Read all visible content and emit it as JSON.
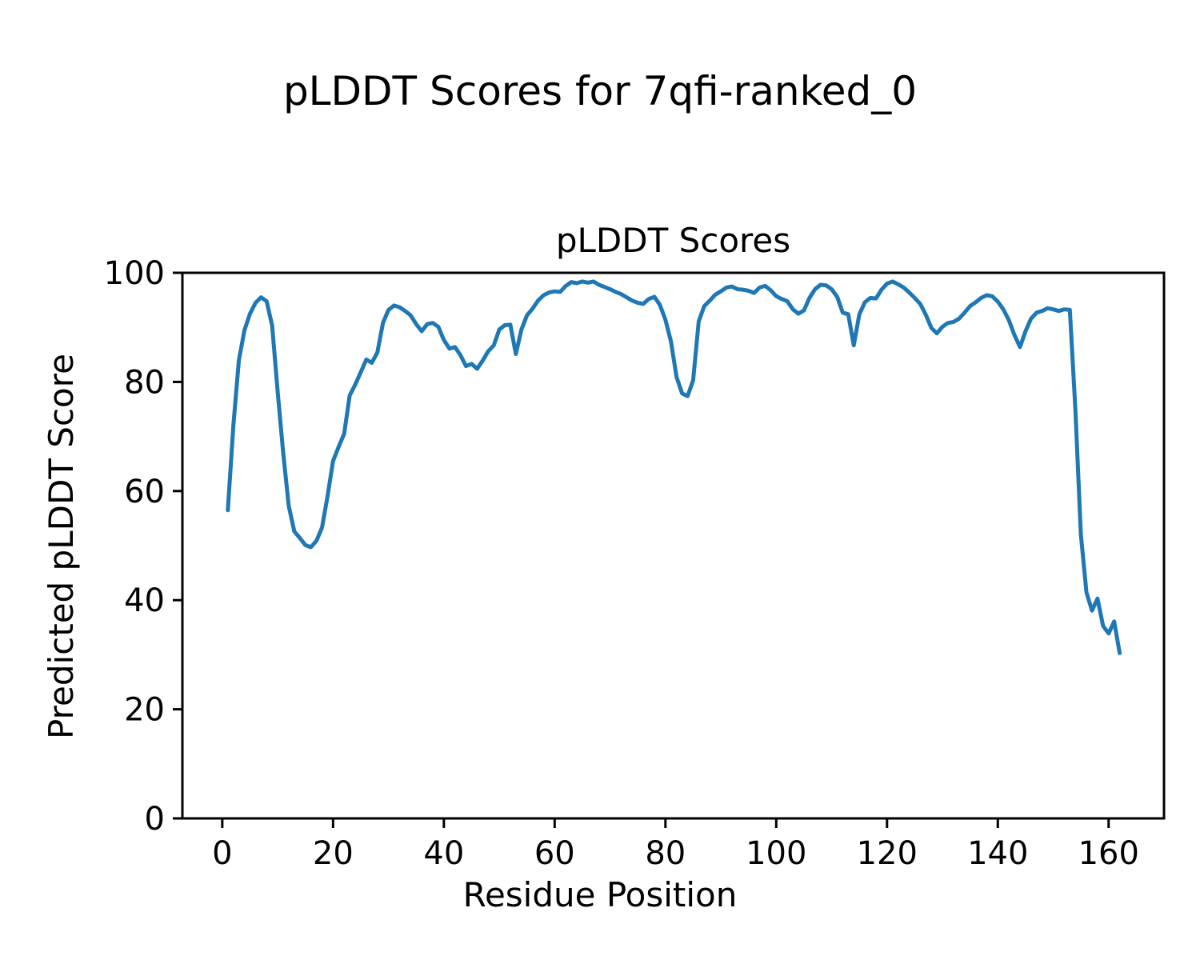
{
  "figure": {
    "suptitle": "pLDDT Scores for 7qfi-ranked_0",
    "background_color": "#ffffff",
    "text_color": "#000000"
  },
  "chart_data": {
    "type": "line",
    "title": "pLDDT Scores",
    "xlabel": "Residue Position",
    "ylabel": "Predicted pLDDT Score",
    "grid": false,
    "legend": null,
    "xlim": [
      -7.2,
      170.0
    ],
    "ylim": [
      0,
      100
    ],
    "xticks": [
      "0",
      "20",
      "40",
      "60",
      "80",
      "100",
      "120",
      "140",
      "160"
    ],
    "xtick_values": [
      0,
      20,
      40,
      60,
      80,
      100,
      120,
      140,
      160
    ],
    "yticks": [
      "0",
      "20",
      "40",
      "60",
      "80",
      "100"
    ],
    "ytick_values": [
      0,
      20,
      40,
      60,
      80,
      100
    ],
    "series": [
      {
        "name": "pLDDT",
        "color": "#1f77b4",
        "line_width": 5,
        "x": [
          1,
          2,
          3,
          4,
          5,
          6,
          7,
          8,
          9,
          10,
          11,
          12,
          13,
          14,
          15,
          16,
          17,
          18,
          19,
          20,
          21,
          22,
          23,
          24,
          25,
          26,
          27,
          28,
          29,
          30,
          31,
          32,
          33,
          34,
          35,
          36,
          37,
          38,
          39,
          40,
          41,
          42,
          43,
          44,
          45,
          46,
          47,
          48,
          49,
          50,
          51,
          52,
          53,
          54,
          55,
          56,
          57,
          58,
          59,
          60,
          61,
          62,
          63,
          64,
          65,
          66,
          67,
          68,
          69,
          70,
          71,
          72,
          73,
          74,
          75,
          76,
          77,
          78,
          79,
          80,
          81,
          82,
          83,
          84,
          85,
          86,
          87,
          88,
          89,
          90,
          91,
          92,
          93,
          94,
          95,
          96,
          97,
          98,
          99,
          100,
          101,
          102,
          103,
          104,
          105,
          106,
          107,
          108,
          109,
          110,
          111,
          112,
          113,
          114,
          115,
          116,
          117,
          118,
          119,
          120,
          121,
          122,
          123,
          124,
          125,
          126,
          127,
          128,
          129,
          130,
          131,
          132,
          133,
          134,
          135,
          136,
          137,
          138,
          139,
          140,
          141,
          142,
          143,
          144,
          145,
          146,
          147,
          148,
          149,
          150,
          151,
          152,
          153,
          154,
          155,
          156,
          157,
          158,
          159,
          160,
          161,
          162
        ],
        "y": [
          56.5,
          72.0,
          84.0,
          89.5,
          92.5,
          94.5,
          95.5,
          94.8,
          90.3,
          78.2,
          67.0,
          57.3,
          52.6,
          51.4,
          50.1,
          49.7,
          50.9,
          53.3,
          59.0,
          65.5,
          68.1,
          70.5,
          77.5,
          79.5,
          81.8,
          84.1,
          83.5,
          85.4,
          90.8,
          93.2,
          94.0,
          93.7,
          93.0,
          92.2,
          90.6,
          89.3,
          90.6,
          90.8,
          90.1,
          87.7,
          86.1,
          86.4,
          84.9,
          82.9,
          83.3,
          82.4,
          83.9,
          85.6,
          86.7,
          89.6,
          90.4,
          90.5,
          85.1,
          89.6,
          92.2,
          93.4,
          94.9,
          95.9,
          96.4,
          96.6,
          96.5,
          97.6,
          98.3,
          98.1,
          98.4,
          98.2,
          98.4,
          97.8,
          97.4,
          97.0,
          96.5,
          96.1,
          95.5,
          94.9,
          94.5,
          94.3,
          95.2,
          95.6,
          94.1,
          91.4,
          87.4,
          80.9,
          77.9,
          77.4,
          80.3,
          91.1,
          93.9,
          94.9,
          96.0,
          96.6,
          97.3,
          97.5,
          97.0,
          96.9,
          96.7,
          96.3,
          97.3,
          97.6,
          96.8,
          95.7,
          95.2,
          94.8,
          93.3,
          92.5,
          93.1,
          95.4,
          97.0,
          97.8,
          97.7,
          97.0,
          95.6,
          92.7,
          92.4,
          86.7,
          92.4,
          94.6,
          95.4,
          95.3,
          96.9,
          98.0,
          98.4,
          97.9,
          97.3,
          96.4,
          95.4,
          94.3,
          92.3,
          89.9,
          88.9,
          90.1,
          90.8,
          91.0,
          91.6,
          92.7,
          93.9,
          94.6,
          95.4,
          95.9,
          95.7,
          94.7,
          93.3,
          91.3,
          88.6,
          86.4,
          89.3,
          91.6,
          92.7,
          93.0,
          93.5,
          93.3,
          93.0,
          93.3,
          93.2,
          75.0,
          52.0,
          41.4,
          38.1,
          40.3,
          35.3,
          33.9,
          36.1,
          30.3
        ]
      }
    ],
    "axes_style": {
      "spine_color": "#000000",
      "spine_width": 3,
      "tick_length": 12,
      "tick_width": 3
    }
  }
}
